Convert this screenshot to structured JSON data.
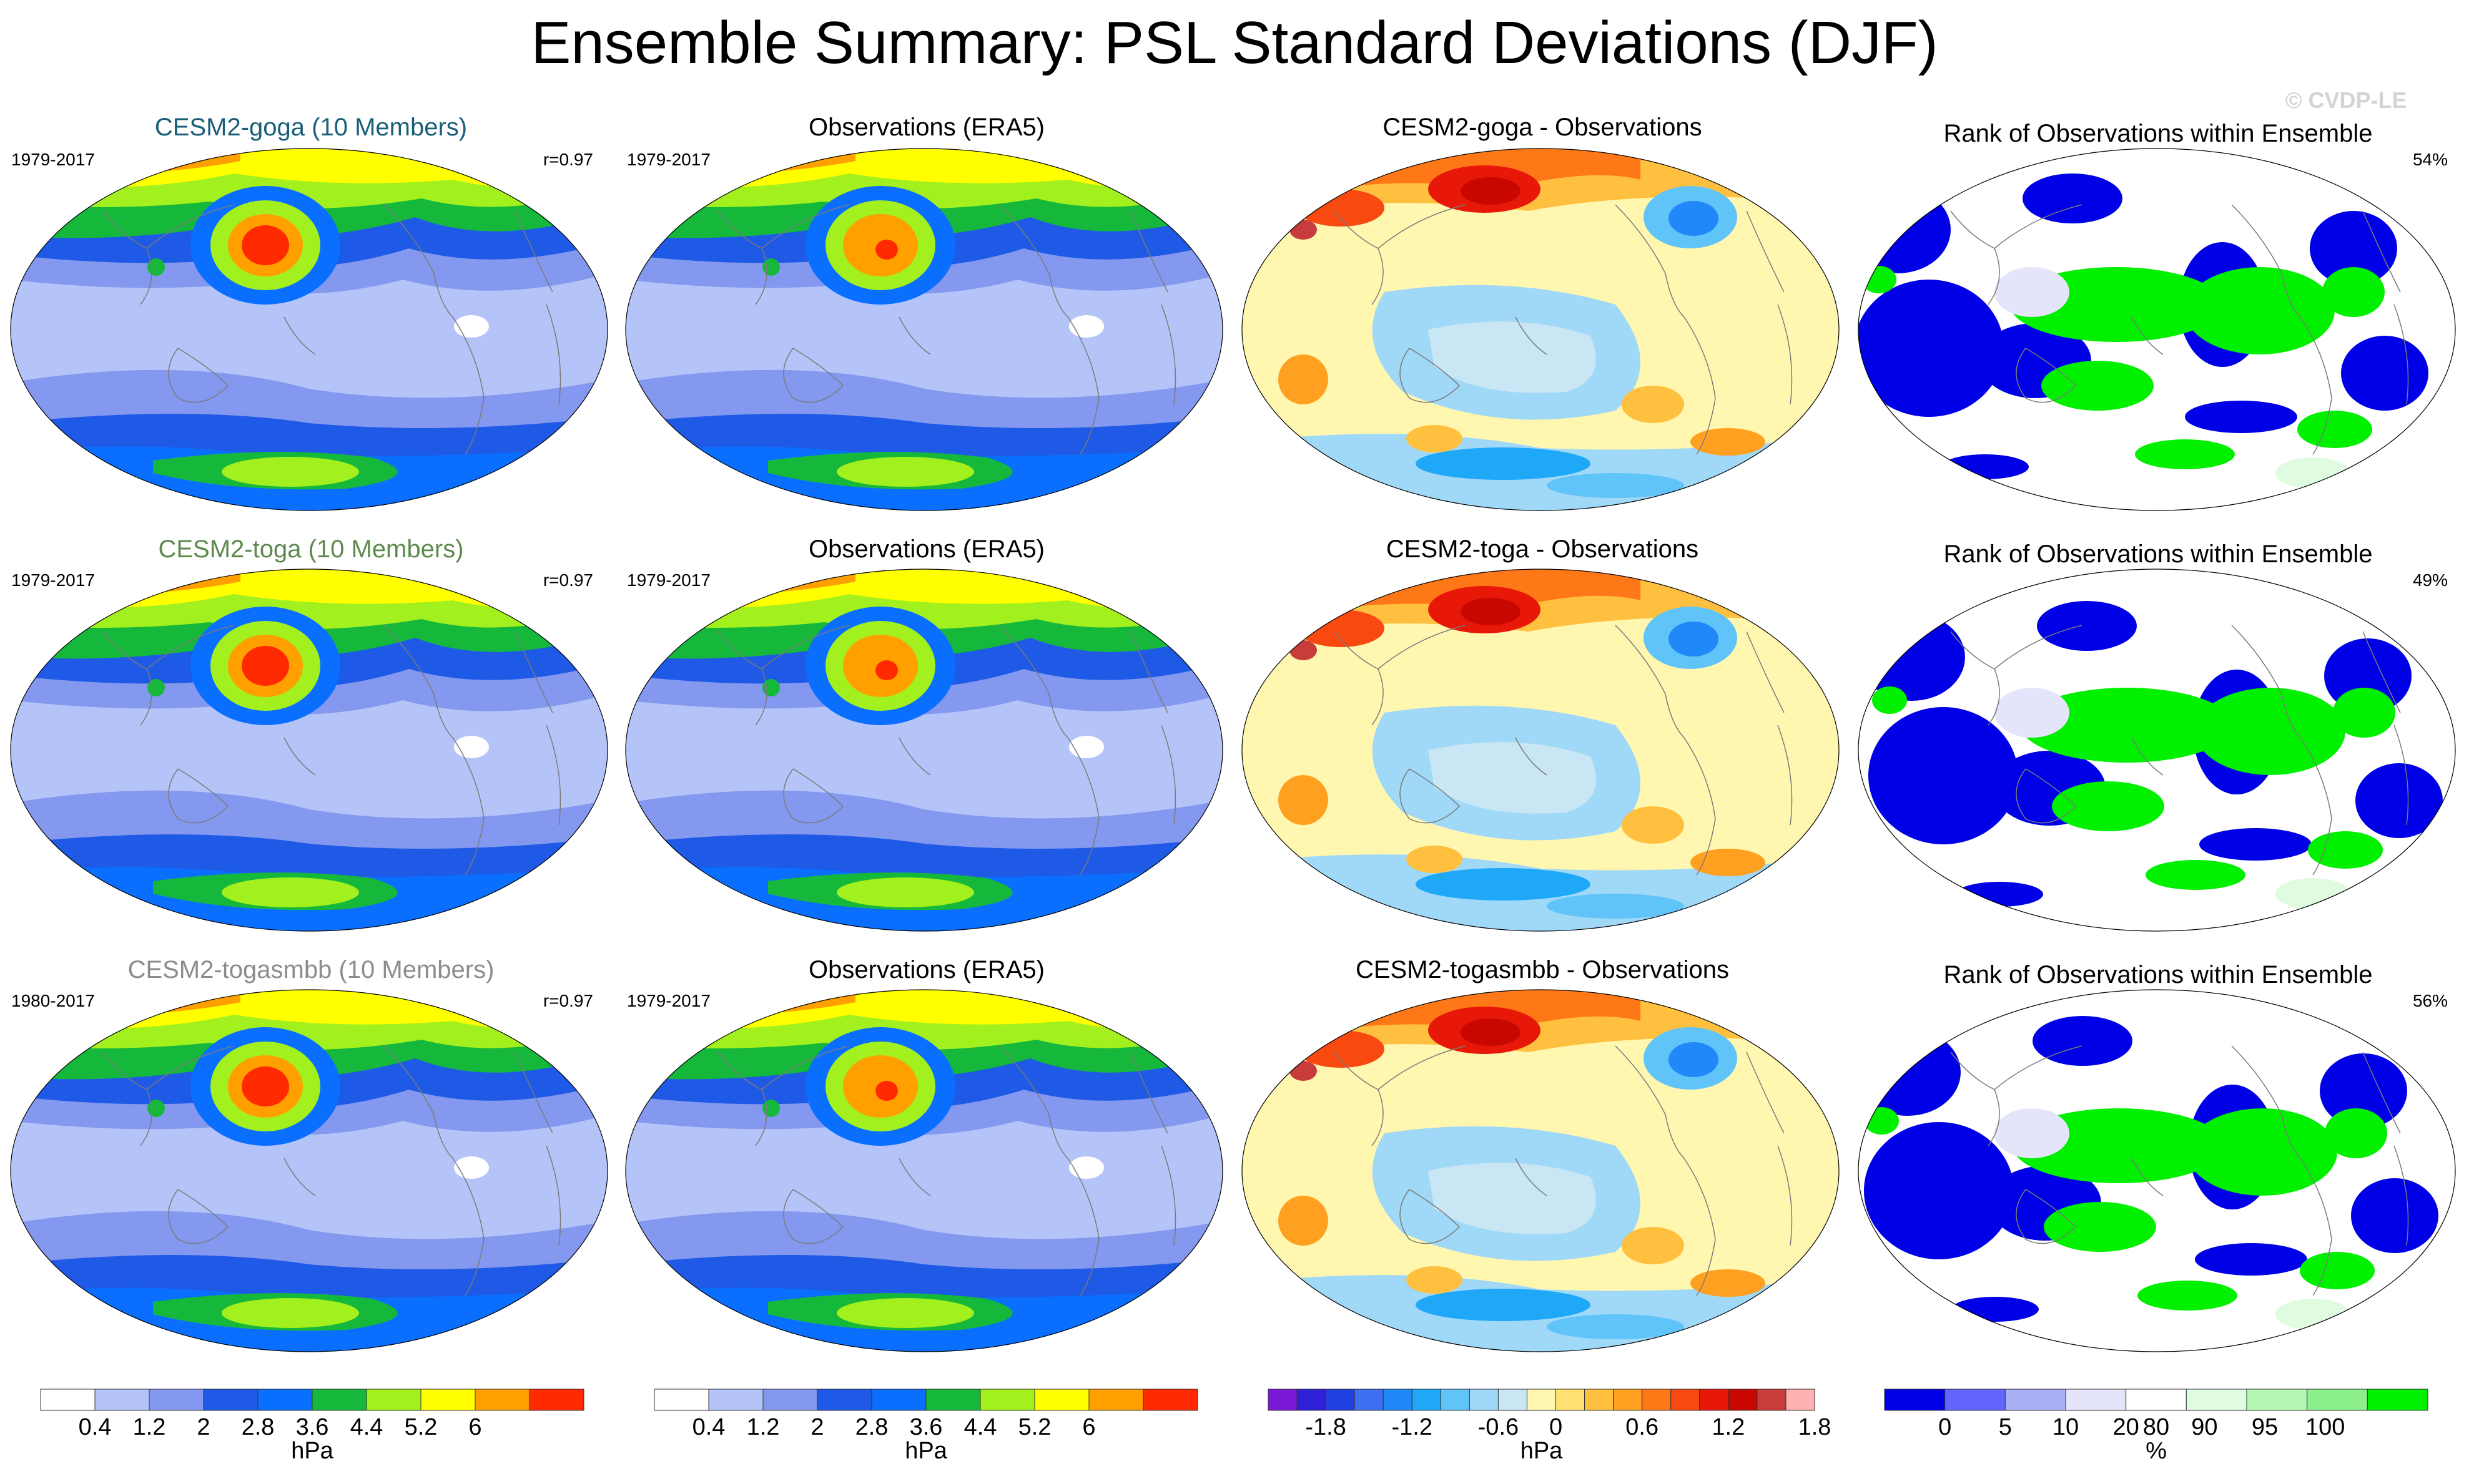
{
  "title": "Ensemble Summary: PSL Standard Deviations (DJF)",
  "watermark": "© CVDP-LE",
  "chart_data": {
    "type": "heatmap",
    "projection": "Robinson (global maps)",
    "rows": [
      {
        "ensemble": {
          "title": "CESM2-goga (10 Members)",
          "title_color": "#1a5f7a",
          "period": "1979-2017",
          "corr": "r=0.97"
        },
        "obs": {
          "title": "Observations (ERA5)",
          "period": "1979-2017"
        },
        "diff": {
          "title": "CESM2-goga - Observations"
        },
        "rank": {
          "title": "Rank of Observations within Ensemble",
          "pct": "54%"
        }
      },
      {
        "ensemble": {
          "title": "CESM2-toga (10 Members)",
          "title_color": "#5e8a4e",
          "period": "1979-2017",
          "corr": "r=0.97"
        },
        "obs": {
          "title": "Observations (ERA5)",
          "period": "1979-2017"
        },
        "diff": {
          "title": "CESM2-toga - Observations"
        },
        "rank": {
          "title": "Rank of Observations within Ensemble",
          "pct": "49%"
        }
      },
      {
        "ensemble": {
          "title": "CESM2-togasmbb (10 Members)",
          "title_color": "#8c8c8c",
          "period": "1980-2017",
          "corr": "r=0.97"
        },
        "obs": {
          "title": "Observations (ERA5)",
          "period": "1979-2017"
        },
        "diff": {
          "title": "CESM2-togasmbb - Observations"
        },
        "rank": {
          "title": "Rank of Observations within Ensemble",
          "pct": "56%"
        }
      }
    ],
    "colorbars": [
      {
        "name": "std",
        "unit": "hPa",
        "ticks": [
          "0.4",
          "1.2",
          "2",
          "2.8",
          "3.6",
          "4.4",
          "5.2",
          "6"
        ],
        "colors": [
          "#ffffff",
          "#b4c4f8",
          "#8398ee",
          "#1e5ae6",
          "#0a6eff",
          "#16b83c",
          "#a2f01e",
          "#ffff00",
          "#ffa000",
          "#ff2a00"
        ]
      },
      {
        "name": "std-obs",
        "unit": "hPa",
        "ticks": [
          "0.4",
          "1.2",
          "2",
          "2.8",
          "3.6",
          "4.4",
          "5.2",
          "6"
        ],
        "colors": [
          "#ffffff",
          "#b4c4f8",
          "#8398ee",
          "#1e5ae6",
          "#0a6eff",
          "#16b83c",
          "#a2f01e",
          "#ffff00",
          "#ffa000",
          "#ff2a00"
        ]
      },
      {
        "name": "diff",
        "unit": "hPa",
        "ticks": [
          "-1.8",
          "-1.2",
          "-0.6",
          "0",
          "0.6",
          "1.2",
          "1.8"
        ],
        "colors": [
          "#7a18d8",
          "#3020d8",
          "#2040e0",
          "#3c6ef0",
          "#2088f8",
          "#20a8f8",
          "#60c4f8",
          "#a0d8f8",
          "#c8e6f4",
          "#fff7b0",
          "#ffe070",
          "#ffc040",
          "#ffa020",
          "#ff7818",
          "#f84a10",
          "#e81808",
          "#c80800",
          "#c83c3c",
          "#ffb0b0"
        ]
      },
      {
        "name": "rank",
        "unit": "%",
        "ticks": [
          "0",
          "5",
          "10",
          "20",
          "80",
          "90",
          "95",
          "100"
        ],
        "colors": [
          "#0000e6",
          "#6464ff",
          "#aab0f8",
          "#e4e4fa",
          "#ffffff",
          "#e0fce0",
          "#b4f8b4",
          "#8cf08c",
          "#00f000"
        ]
      }
    ]
  }
}
